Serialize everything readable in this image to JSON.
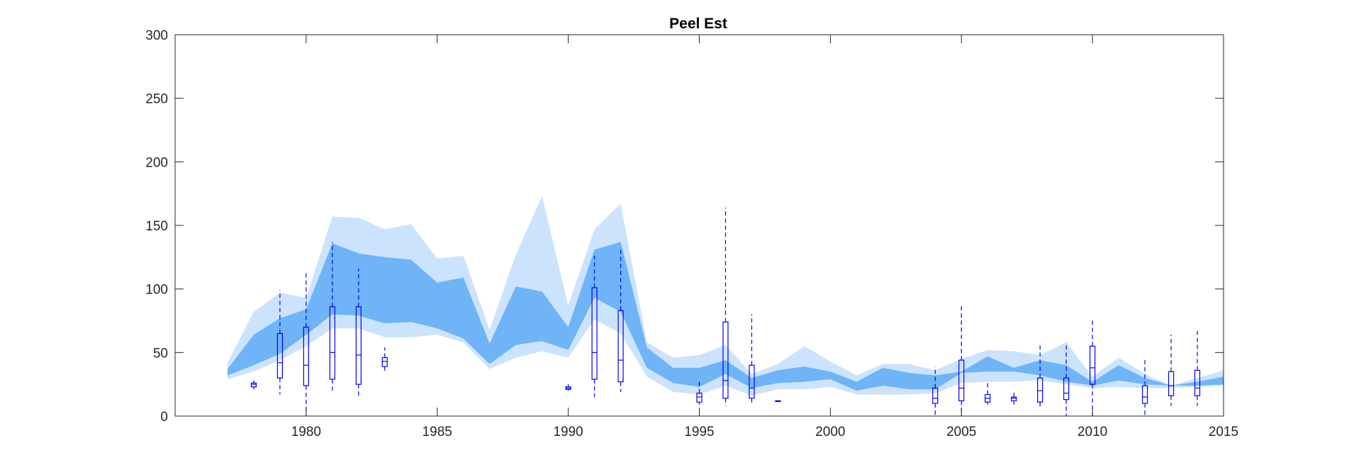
{
  "chart_data": {
    "type": "area",
    "title": "Peel Est",
    "xlabel": "",
    "ylabel": "",
    "xlim": [
      1975,
      2015
    ],
    "ylim": [
      0,
      300
    ],
    "x_ticks": [
      1980,
      1985,
      1990,
      1995,
      2000,
      2005,
      2010,
      2015
    ],
    "y_ticks": [
      0,
      50,
      100,
      150,
      200,
      250,
      300
    ],
    "grid": false,
    "colors": {
      "outer_band": "#cce3fd",
      "inner_band": "#6eb4f7",
      "boxplot": "#0000ff"
    },
    "series": [
      {
        "band": "outer",
        "x": [
          1977,
          1978,
          1979,
          1980,
          1981,
          1982,
          1983,
          1984,
          1985,
          1986,
          1987,
          1988,
          1989,
          1990,
          1991,
          1992,
          1993,
          1994,
          1995,
          1996,
          1997,
          1998,
          1999,
          2000,
          2001,
          2002,
          2003,
          2004,
          2005,
          2006,
          2007,
          2008,
          2009,
          2010,
          2011,
          2012,
          2013,
          2014,
          2015
        ],
        "upper": [
          42,
          82,
          97,
          93,
          157,
          156,
          147,
          151,
          124,
          126,
          68,
          127,
          173,
          87,
          147,
          167,
          58,
          46,
          48,
          56,
          33,
          41,
          55,
          43,
          32,
          41,
          41,
          36,
          45,
          52,
          51,
          48,
          58,
          31,
          46,
          33,
          24,
          30,
          36
        ],
        "lower": [
          29,
          35,
          44,
          55,
          69,
          69,
          62,
          62,
          64,
          58,
          37,
          46,
          51,
          46,
          76,
          65,
          31,
          19,
          17,
          24,
          16,
          21,
          21,
          23,
          17,
          17,
          17,
          18,
          26,
          27,
          27,
          28,
          25,
          22,
          23,
          22,
          22,
          23,
          24
        ]
      },
      {
        "band": "inner",
        "x": [
          1977,
          1978,
          1979,
          1980,
          1981,
          1982,
          1983,
          1984,
          1985,
          1986,
          1987,
          1988,
          1989,
          1990,
          1991,
          1992,
          1993,
          1994,
          1995,
          1996,
          1997,
          1998,
          1999,
          2000,
          2001,
          2002,
          2003,
          2004,
          2005,
          2006,
          2007,
          2008,
          2009,
          2010,
          2011,
          2012,
          2013,
          2014,
          2015
        ],
        "upper": [
          37,
          64,
          77,
          84,
          136,
          128,
          125,
          123,
          105,
          109,
          57,
          102,
          98,
          70,
          131,
          137,
          54,
          38,
          38,
          44,
          30,
          36,
          39,
          35,
          27,
          38,
          34,
          32,
          35,
          47,
          38,
          44,
          40,
          27,
          40,
          30,
          24,
          27,
          31
        ],
        "lower": [
          32,
          40,
          49,
          64,
          80,
          79,
          73,
          74,
          69,
          61,
          41,
          56,
          59,
          52,
          93,
          82,
          38,
          26,
          23,
          33,
          22,
          26,
          27,
          29,
          20,
          24,
          21,
          21,
          34,
          35,
          35,
          32,
          27,
          24,
          28,
          25,
          24,
          24,
          25
        ]
      }
    ],
    "boxplots": [
      {
        "x": 1978,
        "min": 21,
        "q1": 23,
        "median": 25,
        "q3": 26,
        "max": 28
      },
      {
        "x": 1979,
        "min": 17,
        "q1": 30,
        "median": 42,
        "q3": 65,
        "max": 99
      },
      {
        "x": 1980,
        "min": 0,
        "q1": 24,
        "median": 40,
        "q3": 70,
        "max": 113
      },
      {
        "x": 1981,
        "min": 18,
        "q1": 29,
        "median": 50,
        "q3": 86,
        "max": 137
      },
      {
        "x": 1982,
        "min": 16,
        "q1": 25,
        "median": 48,
        "q3": 86,
        "max": 116
      },
      {
        "x": 1983,
        "min": 34,
        "q1": 39,
        "median": 43,
        "q3": 46,
        "max": 54
      },
      {
        "x": 1990,
        "min": 20,
        "q1": 21,
        "median": 22,
        "q3": 23,
        "max": 25
      },
      {
        "x": 1991,
        "min": 15,
        "q1": 29,
        "median": 50,
        "q3": 101,
        "max": 126
      },
      {
        "x": 1992,
        "min": 19,
        "q1": 27,
        "median": 44,
        "q3": 83,
        "max": 132
      },
      {
        "x": 1995,
        "min": 9,
        "q1": 11,
        "median": 15,
        "q3": 18,
        "max": 28
      },
      {
        "x": 1996,
        "min": 8,
        "q1": 14,
        "median": 28,
        "q3": 74,
        "max": 164
      },
      {
        "x": 1997,
        "min": 9,
        "q1": 14,
        "median": 22,
        "q3": 40,
        "max": 80
      },
      {
        "x": 1998,
        "min": 12,
        "q1": 12,
        "median": 12,
        "q3": 12,
        "max": 12
      },
      {
        "x": 2004,
        "min": 0,
        "q1": 10,
        "median": 14,
        "q3": 22,
        "max": 39
      },
      {
        "x": 2005,
        "min": 0,
        "q1": 12,
        "median": 22,
        "q3": 44,
        "max": 87
      },
      {
        "x": 2006,
        "min": 9,
        "q1": 11,
        "median": 14,
        "q3": 17,
        "max": 26
      },
      {
        "x": 2007,
        "min": 9,
        "q1": 12,
        "median": 14,
        "q3": 15,
        "max": 20
      },
      {
        "x": 2008,
        "min": 7,
        "q1": 11,
        "median": 20,
        "q3": 30,
        "max": 57
      },
      {
        "x": 2009,
        "min": 0,
        "q1": 13,
        "median": 18,
        "q3": 30,
        "max": 58
      },
      {
        "x": 2010,
        "min": 0,
        "q1": 25,
        "median": 38,
        "q3": 55,
        "max": 77
      },
      {
        "x": 2012,
        "min": 0,
        "q1": 10,
        "median": 15,
        "q3": 24,
        "max": 44
      },
      {
        "x": 2013,
        "min": 8,
        "q1": 16,
        "median": 24,
        "q3": 35,
        "max": 64
      },
      {
        "x": 2014,
        "min": 8,
        "q1": 16,
        "median": 22,
        "q3": 36,
        "max": 67
      }
    ]
  }
}
